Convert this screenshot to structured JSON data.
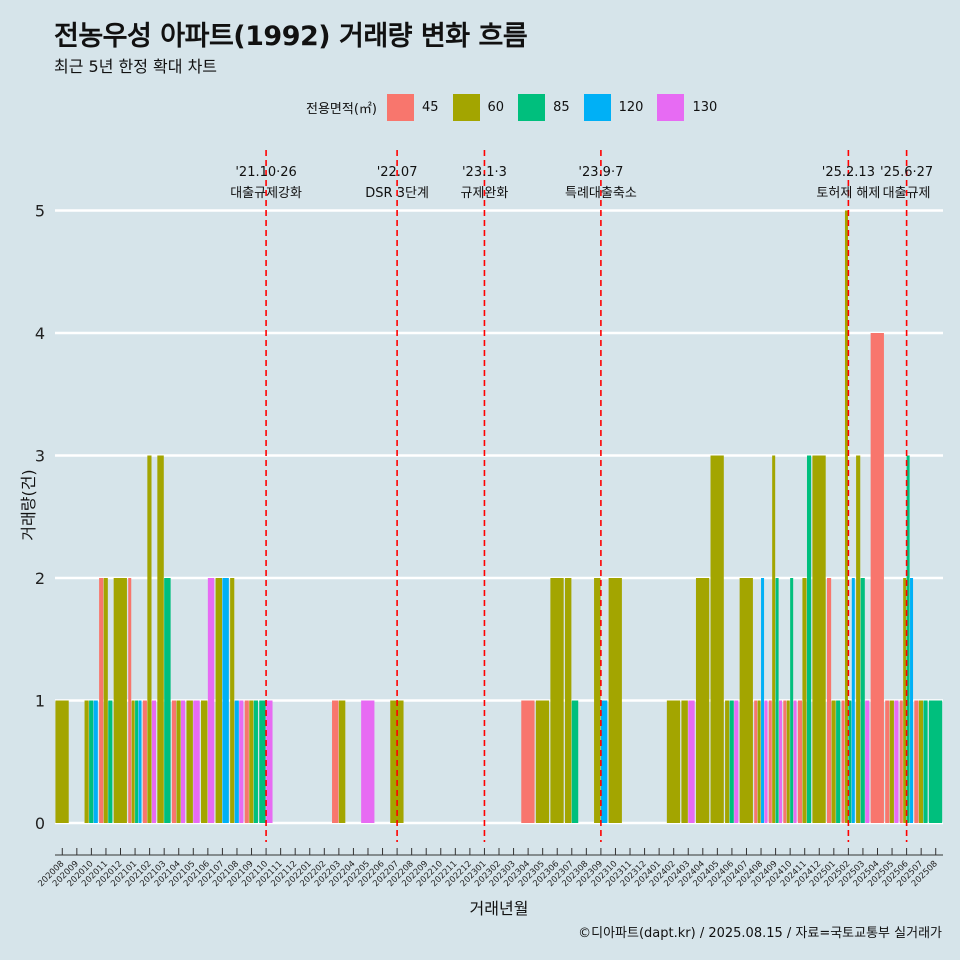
{
  "title": "전농우성 아파트(1992) 거래량 변화 흐름",
  "subtitle": "최근 5년 한정 확대 차트",
  "caption": "©디아파트(dapt.kr) / 2025.08.15 / 자료=국토교통부 실거래가",
  "legend": {
    "title": "전용면적(㎡)",
    "items": [
      {
        "label": "45",
        "color": "#f8766d"
      },
      {
        "label": "60",
        "color": "#a3a500"
      },
      {
        "label": "85",
        "color": "#00bf7d"
      },
      {
        "label": "120",
        "color": "#00b0f6"
      },
      {
        "label": "130",
        "color": "#e76bf3"
      }
    ]
  },
  "chart_data": {
    "type": "bar",
    "xlabel": "거래년월",
    "ylabel": "거래량(건)",
    "ylim": [
      0,
      5
    ],
    "yticks": [
      0,
      1,
      2,
      3,
      4,
      5
    ],
    "categories": [
      "202008",
      "202009",
      "202010",
      "202011",
      "202012",
      "202101",
      "202102",
      "202103",
      "202104",
      "202105",
      "202106",
      "202107",
      "202108",
      "202109",
      "202110",
      "202111",
      "202112",
      "202201",
      "202202",
      "202203",
      "202204",
      "202205",
      "202206",
      "202207",
      "202208",
      "202209",
      "202210",
      "202211",
      "202212",
      "202301",
      "202302",
      "202303",
      "202304",
      "202305",
      "202306",
      "202307",
      "202308",
      "202309",
      "202310",
      "202311",
      "202312",
      "202401",
      "202402",
      "202403",
      "202404",
      "202405",
      "202406",
      "202407",
      "202408",
      "202409",
      "202410",
      "202411",
      "202412",
      "202501",
      "202502",
      "202503",
      "202504",
      "202505",
      "202506",
      "202507",
      "202508"
    ],
    "series": [
      {
        "name": "45",
        "color": "#f8766d",
        "values": [
          0,
          0,
          0,
          2,
          0,
          2,
          1,
          0,
          1,
          0,
          0,
          0,
          0,
          1,
          0,
          0,
          0,
          0,
          0,
          1,
          0,
          0,
          0,
          0,
          0,
          0,
          0,
          0,
          0,
          0,
          0,
          0,
          1,
          0,
          0,
          0,
          0,
          0,
          0,
          0,
          0,
          0,
          0,
          0,
          0,
          0,
          0,
          0,
          1,
          1,
          1,
          1,
          0,
          2,
          1,
          0,
          4,
          1,
          1,
          1,
          0
        ]
      },
      {
        "name": "60",
        "color": "#a3a500",
        "values": [
          1,
          0,
          1,
          2,
          2,
          1,
          3,
          3,
          1,
          1,
          1,
          2,
          2,
          1,
          0,
          0,
          0,
          0,
          0,
          1,
          0,
          0,
          0,
          1,
          0,
          0,
          0,
          0,
          0,
          0,
          0,
          0,
          0,
          1,
          2,
          2,
          0,
          2,
          2,
          0,
          0,
          0,
          1,
          1,
          2,
          3,
          1,
          2,
          1,
          3,
          1,
          2,
          3,
          1,
          5,
          3,
          0,
          1,
          2,
          1,
          0
        ]
      },
      {
        "name": "85",
        "color": "#00bf7d",
        "values": [
          0,
          0,
          1,
          1,
          0,
          1,
          0,
          2,
          0,
          0,
          0,
          0,
          0,
          1,
          1,
          0,
          0,
          0,
          0,
          0,
          0,
          0,
          0,
          0,
          0,
          0,
          0,
          0,
          0,
          0,
          0,
          0,
          0,
          0,
          0,
          1,
          0,
          0,
          0,
          0,
          0,
          0,
          0,
          0,
          0,
          0,
          1,
          0,
          0,
          2,
          2,
          3,
          0,
          1,
          1,
          2,
          0,
          0,
          3,
          1,
          1
        ]
      },
      {
        "name": "120",
        "color": "#00b0f6",
        "values": [
          0,
          0,
          1,
          0,
          0,
          1,
          0,
          0,
          0,
          0,
          0,
          2,
          1,
          0,
          0,
          0,
          0,
          0,
          0,
          0,
          0,
          0,
          0,
          0,
          0,
          0,
          0,
          0,
          0,
          0,
          0,
          0,
          0,
          0,
          0,
          0,
          0,
          1,
          0,
          0,
          0,
          0,
          0,
          0,
          0,
          0,
          0,
          0,
          2,
          0,
          0,
          0,
          0,
          0,
          2,
          0,
          0,
          0,
          2,
          0,
          0
        ]
      },
      {
        "name": "130",
        "color": "#e76bf3",
        "values": [
          0,
          0,
          0,
          0,
          0,
          0,
          1,
          0,
          1,
          1,
          2,
          0,
          1,
          0,
          1,
          0,
          0,
          0,
          0,
          0,
          0,
          1,
          0,
          0,
          0,
          0,
          0,
          0,
          0,
          0,
          0,
          0,
          0,
          0,
          0,
          0,
          0,
          0,
          0,
          0,
          0,
          0,
          0,
          1,
          0,
          0,
          1,
          0,
          1,
          1,
          1,
          0,
          0,
          0,
          0,
          1,
          0,
          1,
          0,
          0,
          0
        ]
      }
    ],
    "events": [
      {
        "month": "202110",
        "date": "'21.10·26",
        "label": "대출규제강화"
      },
      {
        "month": "202207",
        "date": "'22.07",
        "label": "DSR 3단계"
      },
      {
        "month": "202301",
        "date": "'23.1·3",
        "label": "규제완화"
      },
      {
        "month": "202309",
        "date": "'23.9·7",
        "label": "특례대출축소"
      },
      {
        "month": "202502",
        "date": "'25.2.13",
        "label": "토허제 해제"
      },
      {
        "month": "202506",
        "date": "'25.6·27",
        "label": "대출규제"
      }
    ],
    "event_line_color": "#ff0000",
    "grid": true,
    "legend_position": "top"
  }
}
